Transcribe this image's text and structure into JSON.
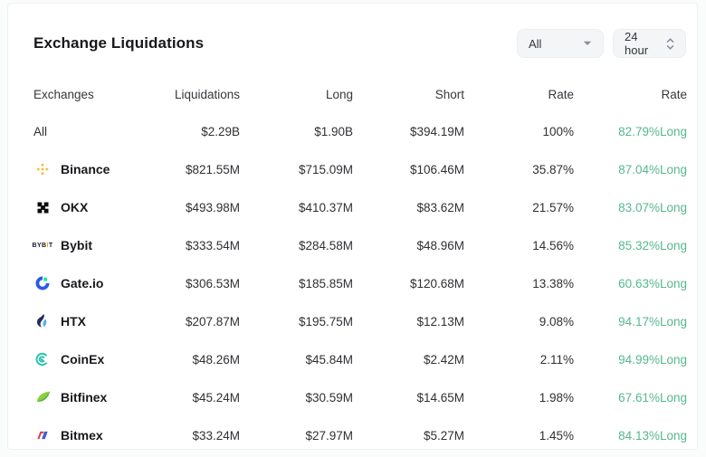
{
  "card": {
    "title": "Exchange Liquidations"
  },
  "filters": {
    "scope": {
      "value": "All",
      "icon": "caret-down-icon"
    },
    "period": {
      "value": "24 hour",
      "icon": "caret-updown-icon"
    }
  },
  "table": {
    "columns": [
      "Exchanges",
      "Liquidations",
      "Long",
      "Short",
      "Rate",
      "Rate"
    ],
    "rows": [
      {
        "exchange": "All",
        "icon": "none",
        "liquidations": "$2.29B",
        "long": "$1.90B",
        "short": "$394.19M",
        "rate": "100%",
        "long_rate": "82.79%Long"
      },
      {
        "exchange": "Binance",
        "icon": "binance",
        "liquidations": "$821.55M",
        "long": "$715.09M",
        "short": "$106.46M",
        "rate": "35.87%",
        "long_rate": "87.04%Long"
      },
      {
        "exchange": "OKX",
        "icon": "okx",
        "liquidations": "$493.98M",
        "long": "$410.37M",
        "short": "$83.62M",
        "rate": "21.57%",
        "long_rate": "83.07%Long"
      },
      {
        "exchange": "Bybit",
        "icon": "bybit",
        "liquidations": "$333.54M",
        "long": "$284.58M",
        "short": "$48.96M",
        "rate": "14.56%",
        "long_rate": "85.32%Long"
      },
      {
        "exchange": "Gate.io",
        "icon": "gate",
        "liquidations": "$306.53M",
        "long": "$185.85M",
        "short": "$120.68M",
        "rate": "13.38%",
        "long_rate": "60.63%Long"
      },
      {
        "exchange": "HTX",
        "icon": "htx",
        "liquidations": "$207.87M",
        "long": "$195.75M",
        "short": "$12.13M",
        "rate": "9.08%",
        "long_rate": "94.17%Long"
      },
      {
        "exchange": "CoinEx",
        "icon": "coinex",
        "liquidations": "$48.26M",
        "long": "$45.84M",
        "short": "$2.42M",
        "rate": "2.11%",
        "long_rate": "94.99%Long"
      },
      {
        "exchange": "Bitfinex",
        "icon": "bitfinex",
        "liquidations": "$45.24M",
        "long": "$30.59M",
        "short": "$14.65M",
        "rate": "1.98%",
        "long_rate": "67.61%Long"
      },
      {
        "exchange": "Bitmex",
        "icon": "bitmex",
        "liquidations": "$33.24M",
        "long": "$27.97M",
        "short": "$5.27M",
        "rate": "1.45%",
        "long_rate": "84.13%Long"
      }
    ]
  },
  "colors": {
    "long_rate_green": "#56b78e",
    "binance_gold": "#f3ba2f",
    "bybit_accent": "#f7a600",
    "gate_blue": "#2a5ae9",
    "gate_green": "#17e6a1",
    "htx_navy": "#252c58",
    "htx_blue": "#59b1e4",
    "coinex_teal": "#23c3ae",
    "bitfinex_green": "#8fce3c",
    "bitmex_red": "#dd3b4e",
    "bitmex_blue": "#3e5bd8"
  }
}
